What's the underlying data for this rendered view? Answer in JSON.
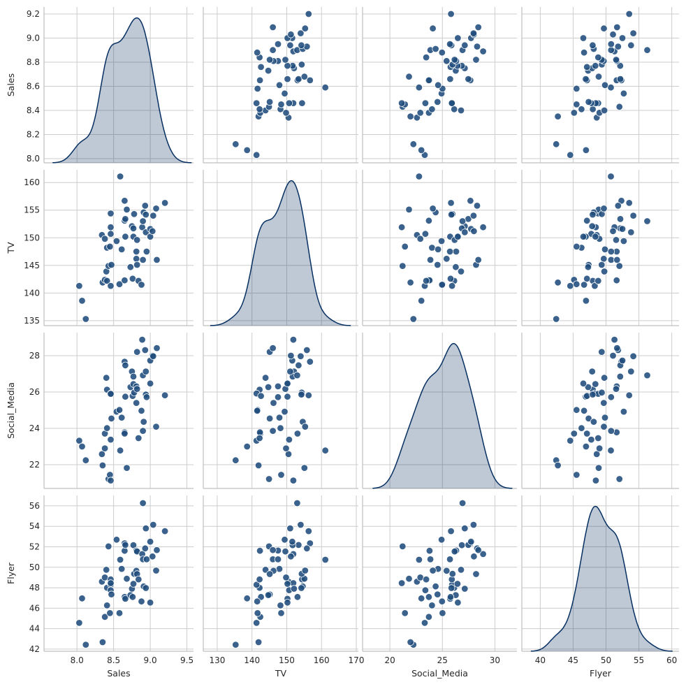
{
  "chart_data": {
    "type": "scatter",
    "subtype": "pairplot",
    "variables": [
      "Sales",
      "TV",
      "Social_Media",
      "Flyer"
    ],
    "diagonal": "kde",
    "grid": true,
    "colors": {
      "point": "#1f4c7c",
      "point_edge": "#ffffff",
      "kde_line": "#062f61",
      "kde_fill": "#062f61",
      "grid": "#cccccc",
      "spine": "#bfbfbf"
    },
    "axes": {
      "Sales": {
        "range": [
          7.55,
          9.59
        ],
        "row_range": [
          7.965,
          9.258
        ],
        "ticks_x": [
          "8.0",
          "8.5",
          "9.0",
          "9.5"
        ],
        "ticks_y": [
          "8.0",
          "8.2",
          "8.4",
          "8.6",
          "8.8",
          "9.0",
          "9.2"
        ]
      },
      "TV": {
        "range": [
          126.0,
          170.6
        ],
        "row_range": [
          134.1,
          162.3
        ],
        "ticks_x": [
          "130",
          "140",
          "150",
          "160",
          "170"
        ],
        "ticks_y": [
          "135",
          "140",
          "145",
          "150",
          "155",
          "160"
        ]
      },
      "Social_Media": {
        "range": [
          17.4,
          32.1
        ],
        "row_range": [
          20.69,
          29.27
        ],
        "ticks_x": [
          "20",
          "25",
          "30"
        ],
        "ticks_y": [
          "22",
          "24",
          "26",
          "28"
        ]
      },
      "Flyer": {
        "range": [
          37.2,
          61.1
        ],
        "row_range": [
          41.79,
          57.02
        ],
        "ticks_x": [
          "40",
          "45",
          "50",
          "55",
          "60"
        ],
        "ticks_y": [
          "42",
          "44",
          "46",
          "48",
          "50",
          "52",
          "54",
          "56"
        ]
      }
    },
    "data": {
      "Sales": [
        8.03,
        8.07,
        8.12,
        8.34,
        8.35,
        8.38,
        8.38,
        8.4,
        8.41,
        8.41,
        8.43,
        8.45,
        8.46,
        8.46,
        8.46,
        8.46,
        8.47,
        8.54,
        8.58,
        8.59,
        8.61,
        8.65,
        8.65,
        8.65,
        8.66,
        8.66,
        8.68,
        8.73,
        8.75,
        8.76,
        8.77,
        8.77,
        8.78,
        8.81,
        8.81,
        8.82,
        8.82,
        8.84,
        8.88,
        8.89,
        8.9,
        8.9,
        8.91,
        8.93,
        8.94,
        8.94,
        8.95,
        9.0,
        9.0,
        9.03,
        9.04,
        9.08,
        9.09,
        9.2
      ],
      "TV": [
        141.3,
        138.6,
        135.3,
        150.5,
        141.9,
        149.8,
        142.4,
        143.9,
        142.2,
        148.2,
        144.9,
        148.4,
        141.3,
        154.4,
        151.9,
        150.7,
        145.1,
        149.4,
        141.6,
        161.1,
        147.9,
        156.7,
        142.3,
        153.1,
        153.4,
        150.2,
        155.1,
        144.7,
        152.1,
        142.6,
        151.7,
        150.2,
        154.3,
        147.5,
        146.2,
        149.6,
        145.1,
        142.2,
        141.5,
        151.9,
        153.0,
        146.0,
        154.6,
        155.8,
        151.0,
        154.2,
        147.5,
        151.6,
        150.2,
        151.2,
        154.0,
        155.3,
        146.0,
        156.3
      ],
      "Social_Media": [
        23.32,
        23.0,
        22.24,
        22.58,
        21.96,
        22.9,
        23.71,
        26.78,
        26.13,
        24.01,
        21.21,
        21.44,
        25.92,
        25.9,
        21.13,
        23.38,
        24.54,
        24.92,
        25.01,
        22.78,
        24.59,
        27.67,
        23.78,
        23.71,
        27.47,
        25.74,
        21.82,
        26.27,
        27.13,
        25.78,
        26.85,
        26.44,
        25.97,
        26.31,
        25.4,
        26.17,
        28.21,
        23.46,
        24.97,
        28.88,
        26.92,
        23.86,
        24.36,
        28.31,
        27.13,
        25.86,
        25.72,
        27.73,
        26.47,
        28.0,
        27.97,
        24.09,
        28.42,
        25.82
      ],
      "Flyer": [
        44.56,
        46.96,
        42.43,
        48.59,
        42.68,
        49.0,
        45.15,
        49.75,
        47.99,
        46.27,
        52.04,
        45.52,
        48.29,
        48.81,
        48.45,
        47.76,
        47.35,
        52.7,
        45.52,
        50.74,
        49.84,
        52.34,
        51.61,
        47.1,
        52.18,
        46.92,
        48.88,
        47.28,
        47.9,
        47.1,
        52.16,
        48.38,
        49.36,
        51.63,
        49.66,
        51.54,
        49.34,
        48.81,
        46.66,
        51.29,
        56.27,
        50.78,
        48.13,
        51.84,
        53.8,
        47.97,
        50.78,
        52.5,
        46.55,
        51.06,
        54.15,
        49.68,
        51.68,
        53.53
      ]
    }
  }
}
